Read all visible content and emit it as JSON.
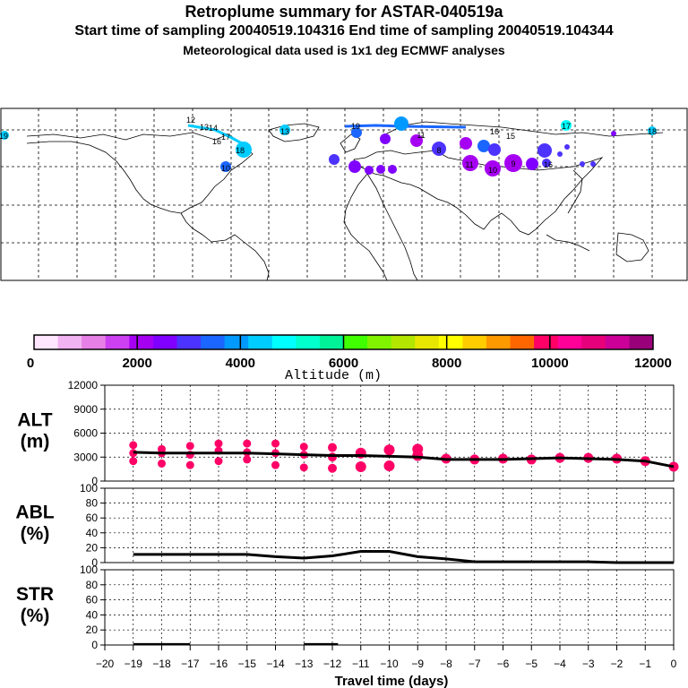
{
  "header": {
    "title": "Retroplume summary for ASTAR-040519a",
    "sampling": "Start time of sampling 20040519.104316      End time of sampling 20040519.104344",
    "met": "Meteorological data used is 1x1 deg ECMWF analyses"
  },
  "colorbar": {
    "ticks": [
      "0",
      "2000",
      "4000",
      "6000",
      "8000",
      "10000",
      "12000"
    ],
    "label": "Altitude (m)",
    "colors": [
      "#ffe6ff",
      "#f2b3f2",
      "#e680e6",
      "#cc40f2",
      "#a600f2",
      "#8000ff",
      "#4d33ff",
      "#1a66ff",
      "#0099ff",
      "#00ccff",
      "#00ffff",
      "#00ffcc",
      "#00f299",
      "#40ff00",
      "#80f200",
      "#b3e600",
      "#e6e600",
      "#ffff00",
      "#ffcc00",
      "#ff9900",
      "#ff6600",
      "#ff0066",
      "#ff0099",
      "#e6007a",
      "#cc0099",
      "#99007a"
    ]
  },
  "map": {
    "day_labels": [
      {
        "t": "12",
        "c": "#00ccff"
      },
      {
        "t": "13",
        "c": "#00ccff"
      },
      {
        "t": "14",
        "c": "#00ccff"
      },
      {
        "t": "16",
        "c": "#00ccff"
      },
      {
        "t": "17",
        "c": "#00ffff"
      },
      {
        "t": "18",
        "c": "#00ccff"
      },
      {
        "t": "19",
        "c": "#00ccff"
      },
      {
        "t": "13",
        "c": "#00ccff"
      },
      {
        "t": "10",
        "c": "#1a66ff"
      },
      {
        "t": "11",
        "c": "#8000ff"
      },
      {
        "t": "11",
        "c": "#a600f2"
      },
      {
        "t": "10",
        "c": "#a600f2"
      },
      {
        "t": "9",
        "c": "#a600f2"
      },
      {
        "t": "8",
        "c": "#8000ff"
      },
      {
        "t": "15",
        "c": "#00ccff"
      },
      {
        "t": "16",
        "c": "#00ccff"
      },
      {
        "t": "17",
        "c": "#00ffff"
      },
      {
        "t": "18",
        "c": "#00ccff"
      },
      {
        "t": "16",
        "c": "#4d33ff"
      },
      {
        "t": "19",
        "c": "#00ccff"
      }
    ]
  },
  "chart_data": [
    {
      "type": "scatter",
      "panel": "ALT",
      "ylabel": "ALT (m)",
      "ylabel_lines": [
        "ALT",
        "(m)"
      ],
      "ylim": [
        0,
        12000
      ],
      "yticks": [
        "12000",
        "9000",
        "6000",
        "3000",
        "0"
      ],
      "line_color": "#000000",
      "point_color": "#ff0066",
      "mean_line": {
        "x": [
          -19,
          -18,
          -17,
          -16,
          -15,
          -14,
          -13,
          -12,
          -11,
          -10,
          -9,
          -8,
          -7,
          -6,
          -5,
          -4,
          -3,
          -2,
          -1,
          0
        ],
        "y": [
          3600,
          3500,
          3500,
          3500,
          3500,
          3400,
          3300,
          3200,
          3200,
          3100,
          3000,
          2700,
          2700,
          2700,
          2800,
          2900,
          2800,
          2700,
          2500,
          1800
        ]
      },
      "clusters": [
        {
          "x": -19,
          "y": [
            4500,
            3500,
            2500
          ]
        },
        {
          "x": -18,
          "y": [
            4000,
            3500,
            2200
          ]
        },
        {
          "x": -17,
          "y": [
            4400,
            3300,
            2000
          ]
        },
        {
          "x": -16,
          "y": [
            4700,
            3800,
            2500
          ]
        },
        {
          "x": -15,
          "y": [
            4700,
            3600,
            2700
          ]
        },
        {
          "x": -14,
          "y": [
            4700,
            3500,
            2000
          ]
        },
        {
          "x": -13,
          "y": [
            4300,
            3300,
            1700
          ]
        },
        {
          "x": -12,
          "y": [
            4200,
            3000,
            1600
          ]
        },
        {
          "x": -11,
          "y": [
            3500,
            1800
          ]
        },
        {
          "x": -10,
          "y": [
            3900,
            1900
          ]
        },
        {
          "x": -9,
          "y": [
            4000,
            3200
          ]
        },
        {
          "x": -8,
          "y": [
            2800
          ]
        },
        {
          "x": -7,
          "y": [
            2700
          ]
        },
        {
          "x": -6,
          "y": [
            2800
          ]
        },
        {
          "x": -5,
          "y": [
            2700
          ]
        },
        {
          "x": -4,
          "y": [
            2900
          ]
        },
        {
          "x": -3,
          "y": [
            2900
          ]
        },
        {
          "x": -2,
          "y": [
            2800
          ]
        },
        {
          "x": -1,
          "y": [
            2500
          ]
        },
        {
          "x": 0,
          "y": [
            1800
          ]
        }
      ]
    },
    {
      "type": "line",
      "panel": "ABL",
      "ylabel": "ABL (%)",
      "ylabel_lines": [
        "ABL",
        "(%)"
      ],
      "ylim": [
        0,
        100
      ],
      "yticks": [
        "100",
        "80",
        "60",
        "40",
        "20",
        "0"
      ],
      "x": [
        -19,
        -18,
        -17,
        -16,
        -15,
        -14,
        -13,
        -12,
        -11,
        -10,
        -9,
        -8,
        -7,
        -6,
        -5,
        -4,
        -3,
        -2,
        -1,
        0
      ],
      "y": [
        11,
        11,
        11,
        11,
        11,
        8,
        6,
        9,
        15,
        15,
        8,
        5,
        1,
        1,
        1,
        1,
        1,
        0,
        0,
        0
      ]
    },
    {
      "type": "line",
      "panel": "STR",
      "ylabel": "STR (%)",
      "ylabel_lines": [
        "STR",
        "(%)"
      ],
      "ylim": [
        0,
        100
      ],
      "yticks": [
        "100",
        "80",
        "60",
        "40",
        "20",
        "0"
      ],
      "segments": [
        {
          "x": [
            -19,
            -17
          ],
          "y": [
            1,
            1
          ]
        },
        {
          "x": [
            -13,
            -11.8
          ],
          "y": [
            1,
            1
          ]
        }
      ]
    }
  ],
  "xaxis": {
    "label": "Travel time (days)",
    "ticks": [
      "−20",
      "−19",
      "−18",
      "−17",
      "−16",
      "−15",
      "−14",
      "−13",
      "−12",
      "−11",
      "−10",
      "−9",
      "−8",
      "−7",
      "−6",
      "−5",
      "−4",
      "−3",
      "−2",
      "−1",
      "0"
    ],
    "range": [
      -20,
      0
    ]
  }
}
